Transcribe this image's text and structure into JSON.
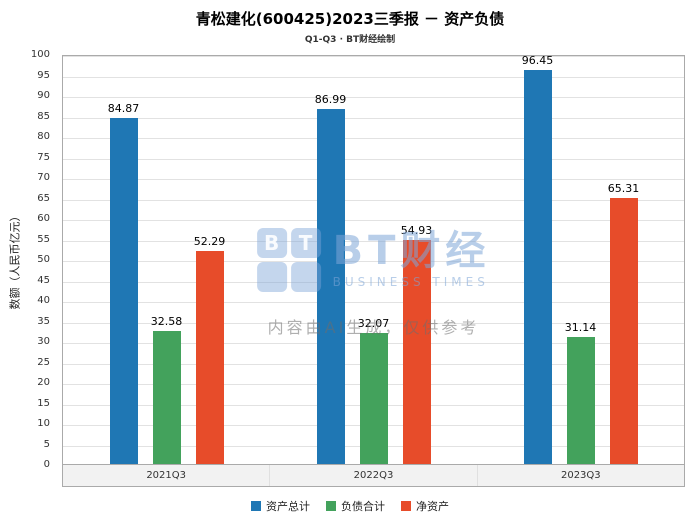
{
  "title": "青松建化(600425)2023三季报 － 资产负债",
  "subtitle": "Q1-Q3 · BT财经绘制",
  "watermark": {
    "logo_letters": [
      "B",
      "T"
    ],
    "brand": "BT财经",
    "brand_sub": "BUSINESS TIMES",
    "disclaimer": "内容由AI生成，仅供参考"
  },
  "chart_data": {
    "type": "bar",
    "title": "青松建化(600425)2023三季报 － 资产负债",
    "subtitle": "Q1-Q3 · BT财经绘制",
    "categories": [
      "2021Q3",
      "2022Q3",
      "2023Q3"
    ],
    "series": [
      {
        "name": "资产总计",
        "color": "#1f77b4",
        "values": [
          84.87,
          86.99,
          96.45
        ]
      },
      {
        "name": "负债合计",
        "color": "#43a25c",
        "values": [
          32.58,
          32.07,
          31.14
        ]
      },
      {
        "name": "净资产",
        "color": "#e74c2a",
        "values": [
          52.29,
          54.93,
          65.31
        ]
      }
    ],
    "xlabel": "",
    "ylabel": "数额（人民币亿元）",
    "ylim": [
      0,
      100
    ],
    "ytick_step": 5,
    "grid": true,
    "legend_position": "bottom"
  }
}
